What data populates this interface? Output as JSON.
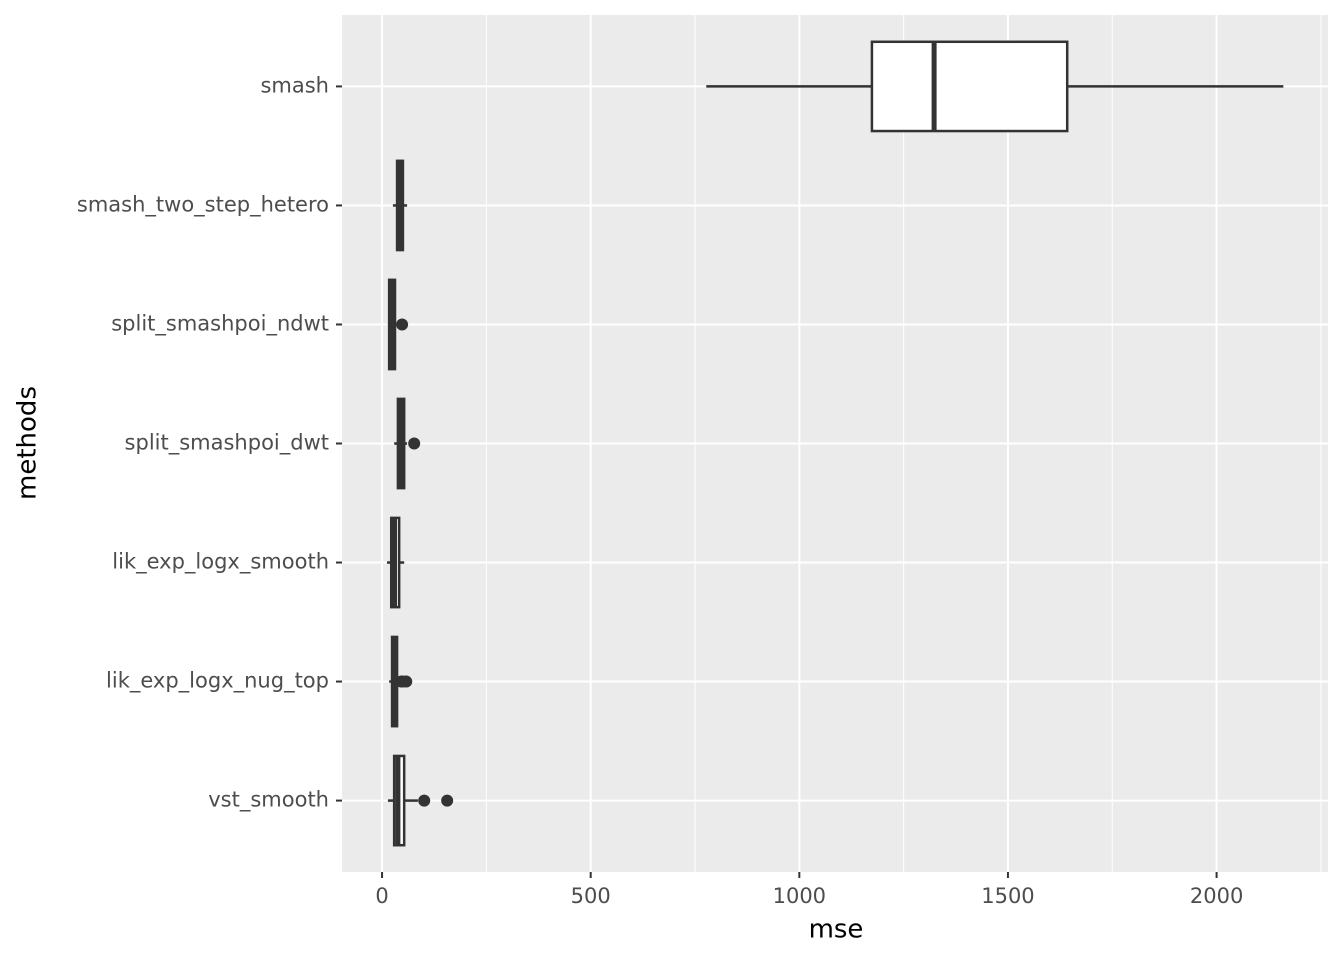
{
  "chart_data": {
    "type": "boxplot",
    "x_label": "mse",
    "y_label": "methods",
    "categories": [
      "smash",
      "smash_two_step_hetero",
      "split_smashpoi_ndwt",
      "split_smashpoi_dwt",
      "lik_exp_logx_smooth",
      "lik_exp_logx_nug_top",
      "vst_smooth"
    ],
    "boxes": [
      {
        "min": 777,
        "q1": 1174,
        "median": 1323,
        "q3": 1642,
        "max": 2160,
        "outliers": []
      },
      {
        "min": 26,
        "q1": 36,
        "median": 43,
        "q3": 50,
        "max": 60,
        "outliers": []
      },
      {
        "min": 14,
        "q1": 17,
        "median": 24,
        "q3": 31,
        "max": 34,
        "outliers": [
          48
        ]
      },
      {
        "min": 29,
        "q1": 38,
        "median": 45,
        "q3": 53,
        "max": 60,
        "outliers": [
          77
        ]
      },
      {
        "min": 12,
        "q1": 22,
        "median": 30,
        "q3": 41,
        "max": 53,
        "outliers": []
      },
      {
        "min": 17,
        "q1": 24,
        "median": 30,
        "q3": 36,
        "max": 41,
        "outliers": [
          46,
          50,
          58
        ]
      },
      {
        "min": 14,
        "q1": 29,
        "median": 38,
        "q3": 53,
        "max": 86,
        "outliers": [
          101,
          156
        ]
      }
    ],
    "box_fill": "#ffffff",
    "line_color": "#333333",
    "xlim": [
      -96,
      2267
    ],
    "xticks": [
      0,
      500,
      1000,
      1500,
      2000
    ],
    "x_minor_grid": [
      250,
      750,
      1250,
      1750,
      2250
    ],
    "grid": true
  }
}
